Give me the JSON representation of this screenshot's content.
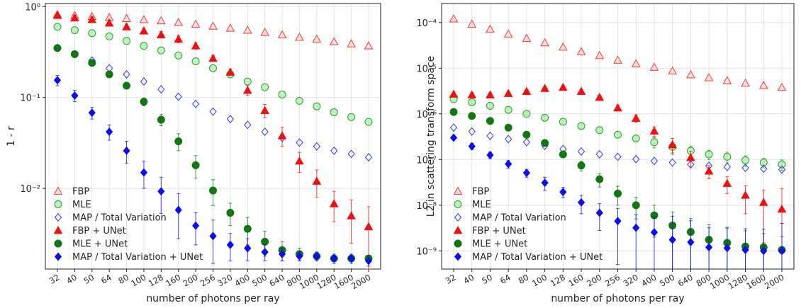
{
  "chart_data": [
    {
      "type": "scatter",
      "xlabel": "number of photons per ray",
      "ylabel": "1 - r",
      "yscale": "log",
      "ylim": [
        0.0013,
        1.08
      ],
      "grid": true,
      "legend_position": "lower-left",
      "categories": [
        "32",
        "40",
        "50",
        "64",
        "80",
        "100",
        "128",
        "160",
        "200",
        "256",
        "320",
        "400",
        "500",
        "640",
        "800",
        "1000",
        "1280",
        "1600",
        "2000"
      ],
      "yticks": [
        {
          "value": 1,
          "label": "10⁰"
        },
        {
          "value": 0.1,
          "label": "10⁻¹"
        },
        {
          "value": 0.01,
          "label": "10⁻²"
        }
      ],
      "series": [
        {
          "name": "FBP",
          "marker": "triangle",
          "filled": false,
          "color": "#f03b3b",
          "values": [
            0.82,
            0.8,
            0.78,
            0.76,
            0.74,
            0.72,
            0.7,
            0.67,
            0.64,
            0.61,
            0.58,
            0.55,
            0.52,
            0.49,
            0.46,
            0.44,
            0.41,
            0.39,
            0.37
          ]
        },
        {
          "name": "MLE",
          "marker": "circle",
          "filled": false,
          "color": "#2ca02c",
          "values": [
            0.6,
            0.55,
            0.51,
            0.47,
            0.42,
            0.37,
            0.33,
            0.29,
            0.25,
            0.21,
            0.18,
            0.15,
            0.13,
            0.108,
            0.092,
            0.08,
            0.069,
            0.061,
            0.054
          ]
        },
        {
          "name": "MAP / Total Variation",
          "marker": "diamond",
          "filled": false,
          "color": "#3434ee",
          "values": [
            0.35,
            0.3,
            0.255,
            0.21,
            0.18,
            0.15,
            0.123,
            0.102,
            0.085,
            0.07,
            0.058,
            0.05,
            0.042,
            0.036,
            0.032,
            0.029,
            0.026,
            0.024,
            0.022
          ]
        },
        {
          "name": "FBP + UNet",
          "marker": "triangle",
          "filled": true,
          "color": "#ee1111",
          "values": [
            0.8,
            0.75,
            0.72,
            0.66,
            0.6,
            0.54,
            0.49,
            0.44,
            0.37,
            0.27,
            0.19,
            0.12,
            0.072,
            0.038,
            0.02,
            0.012,
            0.0068,
            0.005,
            0.0038
          ],
          "errors": [
            0.05,
            0.05,
            0.05,
            0.05,
            0.04,
            0.04,
            0.04,
            0.04,
            0.03,
            0.02,
            0.015,
            0.015,
            0.012,
            0.009,
            0.005,
            0.004,
            0.0025,
            0.0025,
            0.0025
          ]
        },
        {
          "name": "MLE + UNet",
          "marker": "circle",
          "filled": true,
          "color": "#117711",
          "values": [
            0.35,
            0.3,
            0.24,
            0.18,
            0.135,
            0.09,
            0.057,
            0.033,
            0.018,
            0.0095,
            0.0054,
            0.0036,
            0.0026,
            0.0021,
            0.0019,
            0.0018,
            0.0017,
            0.0017,
            0.0017
          ],
          "errors": [
            0.02,
            0.015,
            0.015,
            0.012,
            0.01,
            0.009,
            0.008,
            0.007,
            0.005,
            0.003,
            0.0015,
            0.0012,
            0.0008,
            0.0005,
            0.0003,
            0.0002,
            0.0001,
            0.0001,
            0.0001
          ]
        },
        {
          "name": "MAP / Total Variation + UNet",
          "marker": "diamond",
          "filled": true,
          "color": "#0d0df0",
          "values": [
            0.155,
            0.105,
            0.068,
            0.042,
            0.026,
            0.015,
            0.0093,
            0.0058,
            0.0039,
            0.003,
            0.0024,
            0.0022,
            0.002,
            0.0019,
            0.0018,
            0.0018,
            0.0017,
            0.0017,
            0.0016
          ],
          "errors": [
            0.02,
            0.015,
            0.01,
            0.008,
            0.007,
            0.005,
            0.004,
            0.003,
            0.0015,
            0.0015,
            0.0008,
            0.0006,
            0.0004,
            0.0003,
            0.0002,
            0.0002,
            0.0002,
            0.0002,
            0.0002
          ]
        }
      ]
    },
    {
      "type": "scatter",
      "xlabel": "number of photons per ray",
      "ylabel": "L2 in scattering transform space",
      "yscale": "log",
      "ylim": [
        4e-10,
        0.00026
      ],
      "grid": true,
      "legend_position": "lower-left",
      "categories": [
        "32",
        "40",
        "50",
        "64",
        "80",
        "100",
        "128",
        "160",
        "200",
        "256",
        "320",
        "400",
        "500",
        "640",
        "800",
        "1000",
        "1280",
        "1600",
        "2000"
      ],
      "yticks": [
        {
          "value": 0.0001,
          "label": "10⁻⁴"
        },
        {
          "value": 1e-05,
          "label": "10⁻⁵"
        },
        {
          "value": 1e-06,
          "label": "10⁻⁶"
        },
        {
          "value": 1e-07,
          "label": "10⁻⁷"
        },
        {
          "value": 1e-08,
          "label": "10⁻⁸"
        },
        {
          "value": 1e-09,
          "label": "10⁻⁹"
        }
      ],
      "series": [
        {
          "name": "FBP",
          "marker": "triangle",
          "filled": false,
          "color": "#f03b3b",
          "values": [
            0.00012,
            9.2e-05,
            7.2e-05,
            5.6e-05,
            4.5e-05,
            3.6e-05,
            2.9e-05,
            2.3e-05,
            1.9e-05,
            1.5e-05,
            1.25e-05,
            1.05e-05,
            8.7e-06,
            7.2e-06,
            6.2e-06,
            5.3e-06,
            4.7e-06,
            4.2e-06,
            3.8e-06
          ]
        },
        {
          "name": "MLE",
          "marker": "circle",
          "filled": false,
          "color": "#2ca02c",
          "values": [
            2.1e-06,
            1.8e-06,
            1.5e-06,
            1.22e-06,
            1e-06,
            8.2e-07,
            6.7e-07,
            5.4e-07,
            4.4e-07,
            3.5e-07,
            2.9e-07,
            2.4e-07,
            1.9e-07,
            1.55e-07,
            1.3e-07,
            1.15e-07,
            9.6e-08,
            8.6e-08,
            7.8e-08
          ],
          "errors": [
            2e-07,
            2e-07,
            1.5e-07,
            1.2e-07,
            1e-07,
            8e-08,
            7e-08,
            6e-08,
            5e-08,
            4e-08,
            4e-08,
            6e-08,
            5e-08,
            4e-08,
            3e-08,
            3e-08,
            2.5e-08,
            2e-08,
            2e-08
          ]
        },
        {
          "name": "MAP / Total Variation",
          "marker": "diamond",
          "filled": false,
          "color": "#3434ee",
          "values": [
            5e-07,
            4.1e-07,
            3.3e-07,
            2.8e-07,
            2.4e-07,
            2e-07,
            1.7e-07,
            1.5e-07,
            1.3e-07,
            1.15e-07,
            1.02e-07,
            9.3e-08,
            8.6e-08,
            7.8e-08,
            7.3e-08,
            6.9e-08,
            6.6e-08,
            6.3e-08,
            6e-08
          ]
        },
        {
          "name": "FBP + UNet",
          "marker": "triangle",
          "filled": true,
          "color": "#ee1111",
          "values": [
            2.7e-06,
            2.6e-06,
            2.6e-06,
            2.8e-06,
            3.1e-06,
            3.6e-06,
            3.8e-06,
            3.1e-06,
            2.3e-06,
            1.35e-06,
            8e-07,
            4.2e-07,
            2.1e-07,
            1.1e-07,
            5.6e-08,
            3e-08,
            1.65e-08,
            1.15e-08,
            8.2e-09
          ],
          "errors": [
            3e-07,
            3e-07,
            3e-07,
            3e-07,
            3e-07,
            3e-07,
            3e-07,
            3e-07,
            2.5e-07,
            2e-07,
            1.5e-07,
            1e-07,
            8e-08,
            4e-08,
            1.8e-08,
            1.2e-08,
            1e-08,
            1e-08,
            1.5e-08
          ]
        },
        {
          "name": "MLE + UNet",
          "marker": "circle",
          "filled": true,
          "color": "#117711",
          "values": [
            1.1e-06,
            9e-07,
            7e-07,
            5e-07,
            3.5e-07,
            2.3e-07,
            1.3e-07,
            7.4e-08,
            3.7e-08,
            1.8e-08,
            1e-08,
            6e-09,
            3.6e-09,
            2.6e-09,
            1.75e-09,
            1.5e-09,
            1.25e-09,
            1.2e-09,
            1.05e-09
          ],
          "errors": [
            1e-07,
            8e-08,
            6e-08,
            5e-08,
            4e-08,
            3e-08,
            2e-08,
            1.8e-08,
            1.2e-08,
            8e-09,
            5e-09,
            4e-09,
            3.5e-09,
            2.5e-09,
            2e-09,
            1.8e-09,
            1.5e-09,
            1.2e-09,
            1e-09
          ]
        },
        {
          "name": "MAP / Total Variation + UNet",
          "marker": "diamond",
          "filled": true,
          "color": "#0d0df0",
          "values": [
            3e-07,
            1.95e-07,
            1.25e-07,
            8e-08,
            5.1e-08,
            3.1e-08,
            1.95e-08,
            1.15e-08,
            6.8e-09,
            4.5e-09,
            3.2e-09,
            2.55e-09,
            1.75e-09,
            1.55e-09,
            1.2e-09,
            1.15e-09,
            1.05e-09,
            1e-09,
            1e-09
          ],
          "errors": [
            3e-08,
            3e-08,
            2e-08,
            1.5e-08,
            1e-08,
            1e-08,
            5e-09,
            5e-09,
            4e-09,
            4e-09,
            3e-09,
            3e-09,
            4e-09,
            3e-09,
            2e-09,
            2e-09,
            2e-09,
            2e-09,
            3e-09
          ]
        }
      ]
    }
  ]
}
